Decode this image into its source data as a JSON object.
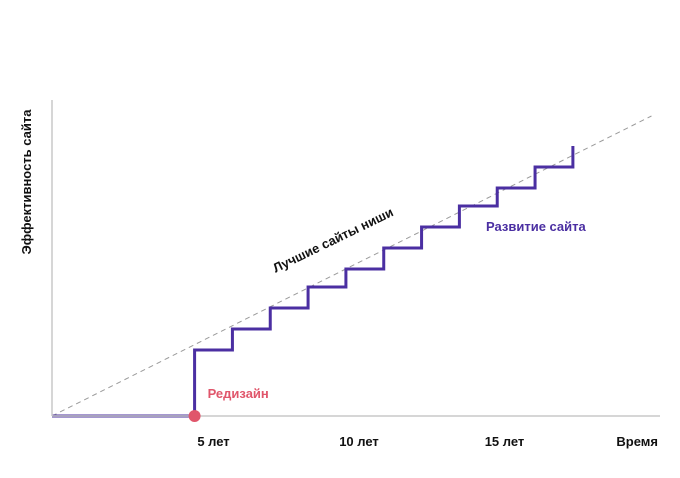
{
  "chart_data": {
    "type": "line",
    "title": "",
    "xlabel": "Время",
    "ylabel": "Эффективность сайта",
    "x_ticks": [
      {
        "x": 5,
        "label": "5 лет"
      },
      {
        "x": 10,
        "label": "10 лет"
      },
      {
        "x": 15,
        "label": "15 лет"
      }
    ],
    "xlim": [
      0,
      20
    ],
    "ylim": [
      0,
      10
    ],
    "grid": false,
    "series": [
      {
        "name": "Развитие сайта",
        "style": "step",
        "color": "#4b2fa2",
        "points": [
          [
            0,
            0
          ],
          [
            4.9,
            0
          ],
          [
            4.9,
            2.2
          ],
          [
            6.2,
            2.2
          ],
          [
            6.2,
            2.9
          ],
          [
            7.5,
            2.9
          ],
          [
            7.5,
            3.6
          ],
          [
            8.8,
            3.6
          ],
          [
            8.8,
            4.3
          ],
          [
            10.1,
            4.3
          ],
          [
            10.1,
            4.9
          ],
          [
            11.4,
            4.9
          ],
          [
            11.4,
            5.6
          ],
          [
            12.7,
            5.6
          ],
          [
            12.7,
            6.3
          ],
          [
            14.0,
            6.3
          ],
          [
            14.0,
            7.0
          ],
          [
            15.3,
            7.0
          ],
          [
            15.3,
            7.6
          ],
          [
            16.6,
            7.6
          ],
          [
            16.6,
            8.3
          ],
          [
            17.9,
            8.3
          ],
          [
            17.9,
            9.0
          ]
        ]
      },
      {
        "name": "Лучшие сайты ниши",
        "style": "dashed",
        "color": "#9a9a9a",
        "points": [
          [
            0,
            0
          ],
          [
            20.6,
            10.0
          ]
        ]
      }
    ],
    "annotations": [
      {
        "text": "Редизайн",
        "x": 4.9,
        "y": 0,
        "color": "#e0566b",
        "marker": true
      }
    ]
  }
}
